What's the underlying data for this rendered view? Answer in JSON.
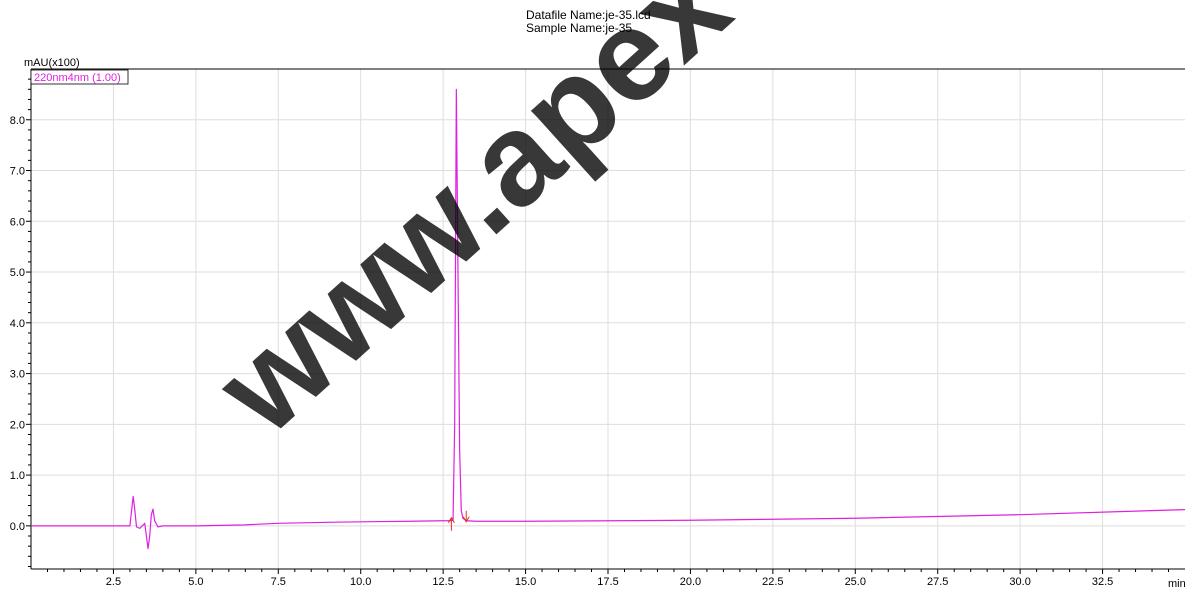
{
  "header": {
    "datafile_line": "Datafile Name:je-35.lcd",
    "sample_line": "Sample Name:je-35"
  },
  "watermark": "www.apex",
  "chart_data": {
    "type": "line",
    "title": "",
    "xlabel": "min",
    "ylabel": "mAU(x100)",
    "xlim": [
      0.0,
      35.0
    ],
    "ylim": [
      -0.85,
      9.0
    ],
    "x_ticks": [
      2.5,
      5.0,
      7.5,
      10.0,
      12.5,
      15.0,
      17.5,
      20.0,
      22.5,
      25.0,
      27.5,
      30.0,
      32.5
    ],
    "x_tick_labels": [
      "2.5",
      "5.0",
      "7.5",
      "10.0",
      "12.5",
      "15.0",
      "17.5",
      "20.0",
      "22.5",
      "25.0",
      "27.5",
      "30.0",
      "32.5"
    ],
    "y_ticks": [
      0,
      1,
      2,
      3,
      4,
      5,
      6,
      7,
      8
    ],
    "y_tick_labels": [
      "0.0",
      "1.0",
      "2.0",
      "3.0",
      "4.0",
      "5.0",
      "6.0",
      "7.0",
      "8.0"
    ],
    "grid": true,
    "legend": {
      "placement": "top-left"
    },
    "series": [
      {
        "name": "220nm4nm (1.00)",
        "color": "#e020e0",
        "x": [
          0.0,
          3.0,
          3.05,
          3.1,
          3.15,
          3.2,
          3.3,
          3.45,
          3.55,
          3.6,
          3.65,
          3.7,
          3.75,
          3.85,
          4.0,
          5.0,
          6.5,
          7.5,
          9.0,
          10.0,
          11.5,
          12.5,
          12.7,
          12.8,
          12.85,
          12.9,
          12.95,
          13.0,
          13.05,
          13.1,
          13.2,
          13.5,
          14.0,
          15.0,
          20.0,
          25.0,
          30.0,
          35.0
        ],
        "y": [
          0.0,
          0.0,
          0.3,
          0.58,
          0.3,
          -0.02,
          -0.05,
          0.05,
          -0.45,
          -0.2,
          0.22,
          0.33,
          0.1,
          -0.02,
          0.0,
          0.0,
          0.02,
          0.05,
          0.07,
          0.08,
          0.09,
          0.1,
          0.1,
          0.11,
          2.0,
          8.6,
          5.0,
          1.5,
          0.3,
          0.15,
          0.1,
          0.09,
          0.09,
          0.09,
          0.11,
          0.15,
          0.22,
          0.32
        ]
      }
    ],
    "peak_markers": {
      "color": "#e03020",
      "start_x": 12.75,
      "end_x": 13.2
    }
  }
}
